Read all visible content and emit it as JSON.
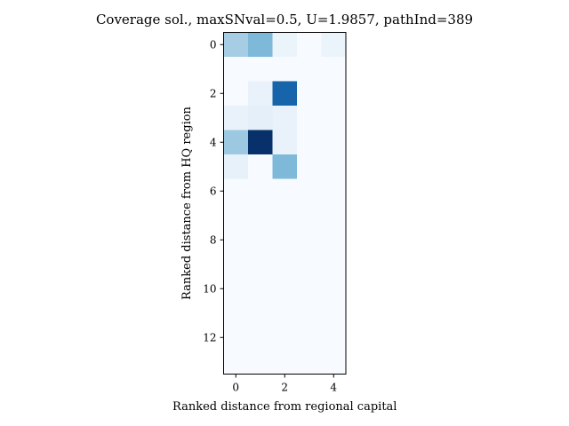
{
  "chart_data": {
    "type": "heatmap",
    "title": "Coverage sol., maxSNval=0.5, U=1.9857, pathInd=389",
    "xlabel": "Ranked distance from regional capital",
    "ylabel": "Ranked distance from HQ region",
    "colormap": "Blues",
    "n_rows": 14,
    "n_cols": 5,
    "x_ticks": [
      0,
      2,
      4
    ],
    "y_ticks": [
      0,
      2,
      4,
      6,
      8,
      10,
      12
    ],
    "values": [
      [
        0.35,
        0.45,
        0.06,
        0.0,
        0.06
      ],
      [
        0.0,
        0.0,
        0.0,
        0.0,
        0.0
      ],
      [
        0.0,
        0.07,
        0.8,
        0.0,
        0.0
      ],
      [
        0.07,
        0.09,
        0.07,
        0.0,
        0.0
      ],
      [
        0.38,
        1.0,
        0.07,
        0.0,
        0.0
      ],
      [
        0.08,
        0.0,
        0.45,
        0.0,
        0.0
      ],
      [
        0.0,
        0.0,
        0.0,
        0.0,
        0.0
      ],
      [
        0.0,
        0.0,
        0.0,
        0.0,
        0.0
      ],
      [
        0.0,
        0.0,
        0.0,
        0.0,
        0.0
      ],
      [
        0.0,
        0.0,
        0.0,
        0.0,
        0.0
      ],
      [
        0.0,
        0.0,
        0.0,
        0.0,
        0.0
      ],
      [
        0.0,
        0.0,
        0.0,
        0.0,
        0.0
      ],
      [
        0.0,
        0.0,
        0.0,
        0.0,
        0.0
      ],
      [
        0.0,
        0.0,
        0.0,
        0.0,
        0.0
      ]
    ]
  }
}
